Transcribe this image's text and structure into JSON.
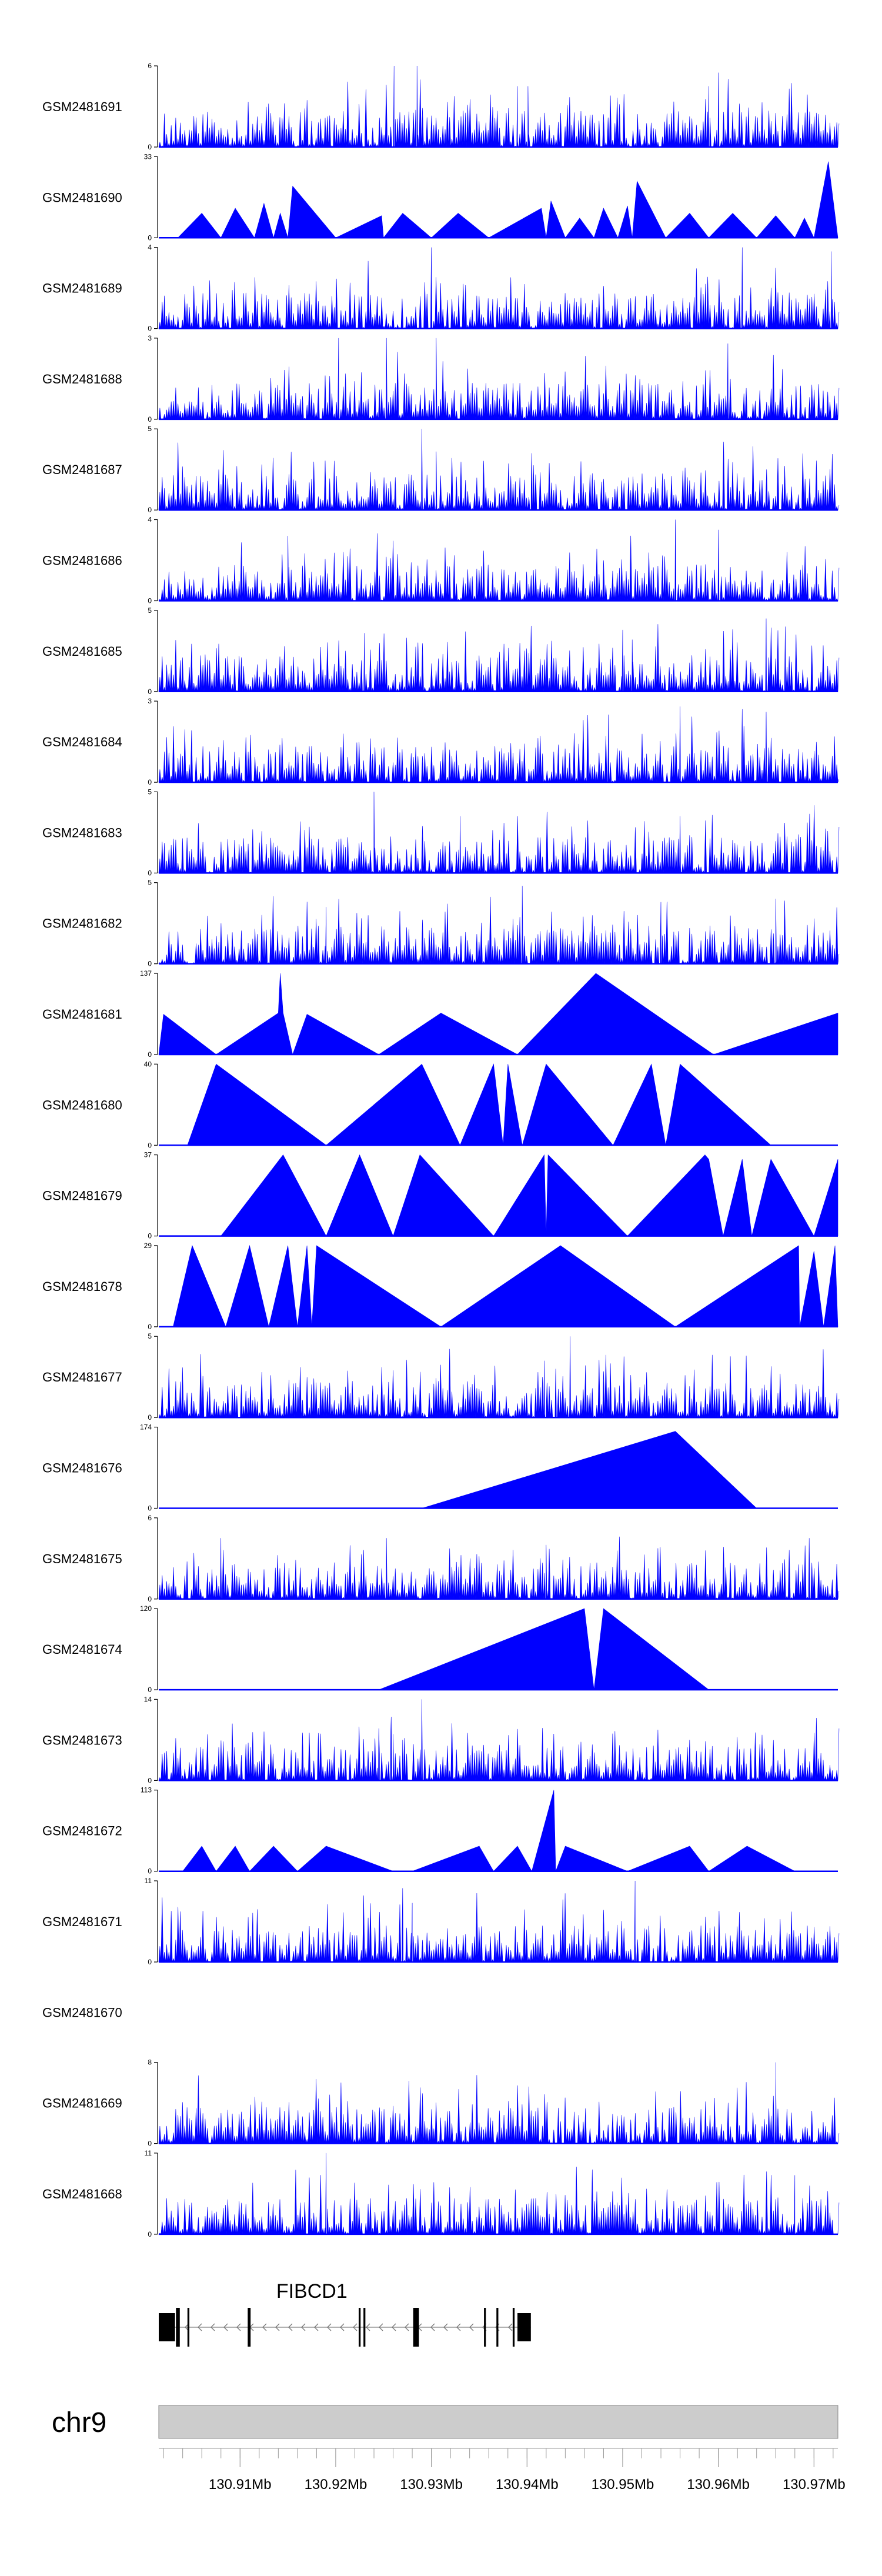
{
  "chart_data": {
    "type": "area",
    "title": "",
    "xlabel": "",
    "ylabel": "",
    "colors": {
      "signal": "#0000ff",
      "axis": "#000000",
      "ideogram": "#cccccc",
      "gene": "#000000"
    },
    "x_range_mb": [
      130.9015,
      130.9725
    ],
    "tracks": [
      {
        "name": "GSM2481691",
        "ymax": 6,
        "ymin": 0,
        "style": "dense",
        "seed": 11,
        "peaks": [
          [
            130.9261,
            6
          ],
          [
            130.9285,
            6
          ],
          [
            130.9401,
            4.5
          ],
          [
            130.96,
            5.5
          ],
          [
            130.939,
            4.5
          ],
          [
            130.959,
            4.5
          ]
        ]
      },
      {
        "name": "GSM2481690",
        "ymax": 33,
        "ymin": 0,
        "style": "sparse",
        "points": [
          [
            130.9015,
            0
          ],
          [
            130.9035,
            0
          ],
          [
            130.906,
            10
          ],
          [
            130.908,
            0
          ],
          [
            130.9095,
            12
          ],
          [
            130.9115,
            0
          ],
          [
            130.9125,
            14
          ],
          [
            130.9135,
            0
          ],
          [
            130.9142,
            10
          ],
          [
            130.915,
            0
          ],
          [
            130.9155,
            21
          ],
          [
            130.92,
            0
          ],
          [
            130.9248,
            9
          ],
          [
            130.925,
            0
          ],
          [
            130.927,
            10
          ],
          [
            130.93,
            0
          ],
          [
            130.9328,
            10
          ],
          [
            130.936,
            0
          ],
          [
            130.9415,
            12
          ],
          [
            130.942,
            0
          ],
          [
            130.9425,
            15
          ],
          [
            130.944,
            0
          ],
          [
            130.9455,
            8
          ],
          [
            130.947,
            0
          ],
          [
            130.948,
            12
          ],
          [
            130.9495,
            0
          ],
          [
            130.9505,
            13
          ],
          [
            130.951,
            0
          ],
          [
            130.9515,
            23
          ],
          [
            130.9545,
            0
          ],
          [
            130.957,
            10
          ],
          [
            130.959,
            0
          ],
          [
            130.9615,
            10
          ],
          [
            130.964,
            0
          ],
          [
            130.966,
            9
          ],
          [
            130.968,
            0
          ],
          [
            130.969,
            8
          ],
          [
            130.97,
            0
          ],
          [
            130.9715,
            31
          ],
          [
            130.9725,
            0
          ]
        ]
      },
      {
        "name": "GSM2481689",
        "ymax": 4,
        "ymin": 0,
        "style": "dense",
        "seed": 23,
        "peaks": [
          [
            130.93,
            4
          ],
          [
            130.9625,
            4
          ],
          [
            130.9718,
            3.8
          ]
        ]
      },
      {
        "name": "GSM2481688",
        "ymax": 3,
        "ymin": 0,
        "style": "dense",
        "seed": 37,
        "peaks": [
          [
            130.9203,
            3
          ],
          [
            130.9253,
            3
          ],
          [
            130.9305,
            3
          ],
          [
            130.961,
            2.8
          ]
        ]
      },
      {
        "name": "GSM2481687",
        "ymax": 5,
        "ymin": 0,
        "style": "dense",
        "seed": 41,
        "peaks": [
          [
            130.929,
            5
          ],
          [
            130.9305,
            3.6
          ],
          [
            130.9405,
            3.5
          ]
        ]
      },
      {
        "name": "GSM2481686",
        "ymax": 4,
        "ymin": 0,
        "style": "dense",
        "seed": 53,
        "peaks": [
          [
            130.9555,
            4
          ],
          [
            130.96,
            3.5
          ],
          [
            130.915,
            3.2
          ]
        ]
      },
      {
        "name": "GSM2481685",
        "ymax": 5,
        "ymin": 0,
        "style": "dense",
        "seed": 61,
        "peaks": [
          [
            130.923,
            3.6
          ],
          [
            130.95,
            3.8
          ],
          [
            130.951,
            3.2
          ],
          [
            130.965,
            4.5
          ],
          [
            130.967,
            4
          ]
        ]
      },
      {
        "name": "GSM2481684",
        "ymax": 3,
        "ymin": 0,
        "style": "dense",
        "seed": 71,
        "peaks": [
          [
            130.956,
            2.8
          ],
          [
            130.9625,
            2.7
          ],
          [
            130.965,
            2.6
          ],
          [
            130.9485,
            2.5
          ]
        ]
      },
      {
        "name": "GSM2481683",
        "ymax": 5,
        "ymin": 0,
        "style": "dense",
        "seed": 83,
        "peaks": [
          [
            130.924,
            5
          ],
          [
            130.933,
            3.5
          ],
          [
            130.956,
            3.5
          ]
        ]
      },
      {
        "name": "GSM2481682",
        "ymax": 5,
        "ymin": 0,
        "style": "dense",
        "seed": 97,
        "peaks": [
          [
            130.9395,
            4.8
          ],
          [
            130.919,
            3.5
          ],
          [
            130.954,
            3.8
          ],
          [
            130.966,
            4
          ]
        ]
      },
      {
        "name": "GSM2481681",
        "ymax": 137,
        "ymin": 0,
        "style": "sparse",
        "points": [
          [
            130.9015,
            0
          ],
          [
            130.902,
            68
          ],
          [
            130.9075,
            0
          ],
          [
            130.914,
            70
          ],
          [
            130.9142,
            137
          ],
          [
            130.9145,
            70
          ],
          [
            130.9155,
            0
          ],
          [
            130.917,
            68
          ],
          [
            130.9245,
            0
          ],
          [
            130.931,
            70
          ],
          [
            130.939,
            0
          ],
          [
            130.9472,
            137
          ],
          [
            130.9595,
            0
          ],
          [
            130.9725,
            70
          ]
        ]
      },
      {
        "name": "GSM2481680",
        "ymax": 40,
        "ymin": 0,
        "style": "sparse",
        "points": [
          [
            130.9045,
            0
          ],
          [
            130.9075,
            40
          ],
          [
            130.919,
            0
          ],
          [
            130.929,
            40
          ],
          [
            130.933,
            0
          ],
          [
            130.9365,
            40
          ],
          [
            130.9375,
            0
          ],
          [
            130.938,
            40
          ],
          [
            130.9395,
            0
          ],
          [
            130.942,
            40
          ],
          [
            130.949,
            0
          ],
          [
            130.953,
            40
          ],
          [
            130.9545,
            0
          ],
          [
            130.956,
            40
          ],
          [
            130.9655,
            0
          ]
        ]
      },
      {
        "name": "GSM2481679",
        "ymax": 37,
        "ymin": 0,
        "style": "sparse",
        "points": [
          [
            130.908,
            0
          ],
          [
            130.9145,
            37
          ],
          [
            130.919,
            0
          ],
          [
            130.9225,
            37
          ],
          [
            130.926,
            0
          ],
          [
            130.9288,
            37
          ],
          [
            130.9365,
            0
          ],
          [
            130.9418,
            37
          ],
          [
            130.942,
            0
          ],
          [
            130.9422,
            37
          ],
          [
            130.9505,
            0
          ],
          [
            130.9586,
            37
          ],
          [
            130.959,
            35
          ],
          [
            130.9605,
            0
          ],
          [
            130.9625,
            35
          ],
          [
            130.9635,
            0
          ],
          [
            130.9655,
            35
          ],
          [
            130.97,
            0
          ],
          [
            130.9725,
            35
          ]
        ]
      },
      {
        "name": "GSM2481678",
        "ymax": 29,
        "ymin": 0,
        "style": "sparse",
        "points": [
          [
            130.903,
            0
          ],
          [
            130.905,
            29
          ],
          [
            130.9085,
            0
          ],
          [
            130.911,
            29
          ],
          [
            130.913,
            0
          ],
          [
            130.915,
            29
          ],
          [
            130.916,
            0
          ],
          [
            130.917,
            29
          ],
          [
            130.9175,
            0
          ],
          [
            130.918,
            29
          ],
          [
            130.931,
            0
          ],
          [
            130.9435,
            29
          ],
          [
            130.9555,
            0
          ],
          [
            130.9684,
            29
          ],
          [
            130.9685,
            0
          ],
          [
            130.97,
            27
          ],
          [
            130.971,
            0
          ],
          [
            130.9722,
            29
          ],
          [
            130.9725,
            0
          ]
        ]
      },
      {
        "name": "GSM2481677",
        "ymax": 5,
        "ymin": 0,
        "style": "dense",
        "seed": 109,
        "peaks": [
          [
            130.9445,
            5
          ],
          [
            130.9418,
            3.5
          ],
          [
            130.943,
            3
          ]
        ]
      },
      {
        "name": "GSM2481676",
        "ymax": 174,
        "ymin": 0,
        "style": "sparse",
        "points": [
          [
            130.9015,
            0
          ],
          [
            130.929,
            0
          ],
          [
            130.9555,
            165
          ],
          [
            130.964,
            0
          ],
          [
            130.9725,
            0
          ]
        ]
      },
      {
        "name": "GSM2481675",
        "ymax": 6,
        "ymin": 0,
        "style": "dense",
        "seed": 127,
        "peaks": [
          [
            130.908,
            4.5
          ],
          [
            130.9253,
            4.5
          ],
          [
            130.9695,
            4.5
          ],
          [
            130.942,
            4
          ]
        ]
      },
      {
        "name": "GSM2481674",
        "ymax": 120,
        "ymin": 0,
        "style": "sparse",
        "points": [
          [
            130.9015,
            0
          ],
          [
            130.9245,
            0
          ],
          [
            130.946,
            120
          ],
          [
            130.947,
            0
          ],
          [
            130.948,
            120
          ],
          [
            130.959,
            0
          ],
          [
            130.9725,
            0
          ]
        ]
      },
      {
        "name": "GSM2481673",
        "ymax": 14,
        "ymin": 0,
        "style": "dense",
        "seed": 131,
        "peaks": [
          [
            130.9245,
            9
          ],
          [
            130.9258,
            11
          ],
          [
            130.927,
            7
          ],
          [
            130.929,
            14
          ],
          [
            130.926,
            8
          ]
        ]
      },
      {
        "name": "GSM2481672",
        "ymax": 113,
        "ymin": 0,
        "style": "sparse",
        "points": [
          [
            130.9015,
            0
          ],
          [
            130.904,
            0
          ],
          [
            130.906,
            35
          ],
          [
            130.9075,
            0
          ],
          [
            130.9095,
            35
          ],
          [
            130.911,
            0
          ],
          [
            130.9135,
            35
          ],
          [
            130.916,
            0
          ],
          [
            130.919,
            35
          ],
          [
            130.926,
            0
          ],
          [
            130.928,
            0
          ],
          [
            130.935,
            35
          ],
          [
            130.9365,
            0
          ],
          [
            130.939,
            35
          ],
          [
            130.9405,
            0
          ],
          [
            130.9428,
            113
          ],
          [
            130.943,
            0
          ],
          [
            130.944,
            35
          ],
          [
            130.9505,
            0
          ],
          [
            130.957,
            35
          ],
          [
            130.959,
            0
          ],
          [
            130.963,
            35
          ],
          [
            130.968,
            0
          ],
          [
            130.9725,
            0
          ]
        ]
      },
      {
        "name": "GSM2481671",
        "ymax": 11,
        "ymin": 0,
        "style": "dense",
        "seed": 139,
        "peaks": [
          [
            130.9513,
            11
          ],
          [
            130.927,
            10
          ],
          [
            130.928,
            8
          ]
        ]
      },
      {
        "name": "GSM2481670",
        "ymax": null,
        "ymin": null,
        "style": "empty"
      },
      {
        "name": "GSM2481669",
        "ymax": 8,
        "ymin": 0,
        "style": "dense",
        "seed": 151,
        "peaks": [
          [
            130.966,
            8
          ],
          [
            130.966,
            6.5
          ]
        ]
      },
      {
        "name": "GSM2481668",
        "ymax": 11,
        "ymin": 0,
        "style": "dense",
        "seed": 163,
        "peaks": [
          [
            130.919,
            11
          ],
          [
            130.968,
            8
          ]
        ]
      }
    ],
    "gene": {
      "name": "FIBCD1",
      "strand": "-",
      "start": 130.9015,
      "end": 130.9404,
      "exons": [
        [
          130.9015,
          130.9032
        ],
        [
          130.9033,
          130.9037
        ],
        [
          130.9045,
          130.9047
        ],
        [
          130.9108,
          130.9111
        ],
        [
          130.9224,
          130.9226
        ],
        [
          130.9229,
          130.9231
        ],
        [
          130.9281,
          130.9287
        ],
        [
          130.9355,
          130.9357
        ],
        [
          130.9368,
          130.937
        ],
        [
          130.9385,
          130.9387
        ],
        [
          130.939,
          130.9404
        ]
      ]
    },
    "ideogram": {
      "chromosome": "chr9"
    },
    "axis": {
      "ticks": [
        "130.91Mb",
        "130.92Mb",
        "130.93Mb",
        "130.94Mb",
        "130.95Mb",
        "130.96Mb",
        "130.97Mb"
      ],
      "tick_values": [
        130.91,
        130.92,
        130.93,
        130.94,
        130.95,
        130.96,
        130.97
      ],
      "minor_step": 0.002
    }
  }
}
